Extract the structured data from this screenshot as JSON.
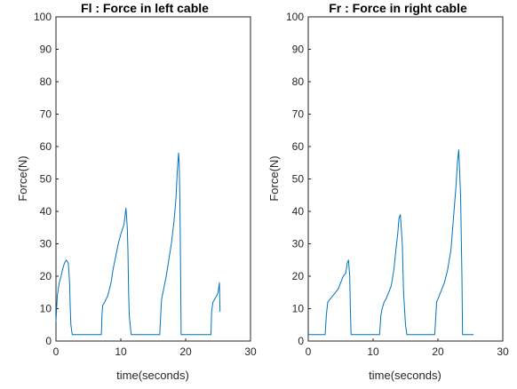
{
  "chart_data": [
    {
      "type": "line",
      "title": "Fl : Force in left cable",
      "xlabel": "time(seconds)",
      "ylabel": "Force(N)",
      "xlim": [
        0,
        30
      ],
      "ylim": [
        0,
        100
      ],
      "xticks": [
        "0",
        "10",
        "20",
        "30"
      ],
      "yticks": [
        "0",
        "10",
        "20",
        "30",
        "40",
        "50",
        "60",
        "70",
        "80",
        "90",
        "100"
      ],
      "grid": false,
      "series": [
        {
          "color": "#0072BD",
          "x": [
            0,
            0.2,
            0.5,
            0.8,
            1.0,
            1.3,
            1.6,
            1.9,
            2.1,
            2.2,
            2.3,
            2.5,
            7.0,
            7.1,
            7.2,
            7.5,
            8.0,
            8.5,
            8.8,
            9.2,
            9.6,
            10.0,
            10.5,
            10.8,
            11.0,
            11.1,
            11.2,
            11.3,
            11.5,
            11.6,
            11.7,
            16.0,
            16.2,
            16.3,
            16.6,
            17.0,
            17.4,
            17.8,
            18.2,
            18.5,
            18.7,
            18.9,
            19.0,
            19.1,
            19.2,
            19.3,
            23.9,
            24.0,
            24.2,
            24.5,
            24.8,
            25.0,
            25.2,
            25.3
          ],
          "y": [
            6,
            14,
            18,
            20,
            22,
            24,
            25,
            24,
            18,
            10,
            5,
            2,
            2,
            8,
            11,
            12,
            14,
            18,
            22,
            26,
            30,
            33,
            36,
            41,
            35,
            28,
            15,
            8,
            4,
            2,
            2,
            2,
            10,
            13,
            16,
            20,
            25,
            30,
            37,
            44,
            52,
            58,
            55,
            45,
            25,
            2,
            2,
            9,
            12,
            13,
            14,
            15,
            18,
            9
          ]
        }
      ]
    },
    {
      "type": "line",
      "title": "Fr : Force in right cable",
      "xlabel": "time(seconds)",
      "ylabel": "Force(N)",
      "xlim": [
        0,
        30
      ],
      "ylim": [
        0,
        100
      ],
      "xticks": [
        "0",
        "10",
        "20",
        "30"
      ],
      "yticks": [
        "0",
        "10",
        "20",
        "30",
        "40",
        "50",
        "60",
        "70",
        "80",
        "90",
        "100"
      ],
      "grid": false,
      "series": [
        {
          "color": "#0072BD",
          "x": [
            0,
            2.6,
            2.8,
            3.0,
            3.4,
            3.8,
            4.2,
            4.6,
            5.0,
            5.4,
            5.8,
            6.0,
            6.2,
            6.4,
            6.5,
            6.6,
            11.0,
            11.2,
            11.4,
            11.7,
            12.0,
            12.4,
            12.8,
            13.2,
            13.5,
            13.8,
            14.0,
            14.2,
            14.5,
            14.7,
            15.0,
            15.2,
            15.3,
            19.5,
            19.8,
            20.2,
            20.6,
            21.0,
            21.5,
            22.0,
            22.4,
            22.8,
            23.0,
            23.2,
            23.5,
            23.7,
            23.8,
            25.5
          ],
          "y": [
            2,
            2,
            8,
            12,
            13,
            14,
            15,
            16,
            18,
            20,
            21,
            24,
            25,
            20,
            10,
            2,
            2,
            8,
            10,
            12,
            13,
            15,
            17,
            22,
            28,
            33,
            38,
            39,
            30,
            15,
            5,
            2,
            2,
            2,
            12,
            14,
            16,
            18,
            22,
            28,
            38,
            48,
            55,
            59,
            45,
            20,
            2,
            2
          ]
        }
      ]
    }
  ]
}
